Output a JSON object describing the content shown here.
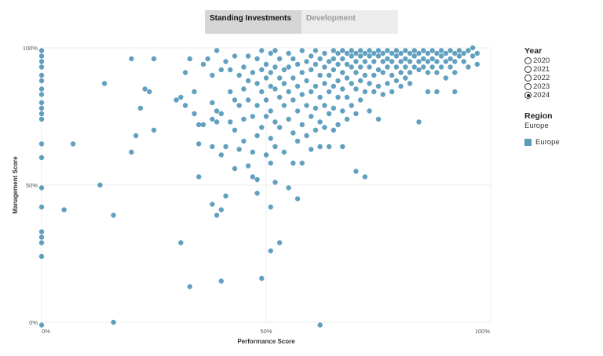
{
  "tabs": [
    {
      "label": "Standing Investments",
      "active": true
    },
    {
      "label": "Development",
      "active": false
    }
  ],
  "legend": {
    "year_title": "Year",
    "years": [
      "2020",
      "2021",
      "2022",
      "2023",
      "2024"
    ],
    "selected_year": "2024",
    "region_title": "Region",
    "region_value": "Europe",
    "color_entries": [
      {
        "label": "Europe",
        "color": "#5a9ab6"
      }
    ]
  },
  "colors": {
    "point": "#1f77a4",
    "grid": "#ececec"
  },
  "chart_data": {
    "type": "scatter",
    "xlabel": "Performance Score",
    "ylabel": "Management Score",
    "xlim": [
      0,
      100
    ],
    "ylim": [
      0,
      100
    ],
    "x_ticks": [
      "0%",
      "50%",
      "100%"
    ],
    "y_ticks": [
      "0%",
      "50%",
      "100%"
    ],
    "grid": true,
    "point_density": "dense cluster near x 65-95%, y 90-100%",
    "series": [
      {
        "points": [
          [
            0,
            99
          ],
          [
            0,
            97
          ],
          [
            0,
            95
          ],
          [
            0,
            93
          ],
          [
            0,
            90
          ],
          [
            0,
            88
          ],
          [
            0,
            85
          ],
          [
            0,
            83
          ],
          [
            0,
            80
          ],
          [
            0,
            78
          ],
          [
            0,
            76
          ],
          [
            0,
            74
          ],
          [
            0,
            65
          ],
          [
            0,
            60
          ],
          [
            0,
            49
          ],
          [
            0,
            42
          ],
          [
            0,
            33
          ],
          [
            0,
            31
          ],
          [
            0,
            29
          ],
          [
            0,
            24
          ],
          [
            0,
            -1
          ],
          [
            5,
            41
          ],
          [
            7,
            65
          ],
          [
            13,
            50
          ],
          [
            14,
            87
          ],
          [
            16,
            39
          ],
          [
            16,
            0
          ],
          [
            20,
            96
          ],
          [
            20,
            62
          ],
          [
            21,
            68
          ],
          [
            22,
            78
          ],
          [
            23,
            85
          ],
          [
            24,
            84
          ],
          [
            25,
            96
          ],
          [
            25,
            70
          ],
          [
            30,
            81
          ],
          [
            31,
            82
          ],
          [
            31,
            29
          ],
          [
            32,
            91
          ],
          [
            32,
            79
          ],
          [
            33,
            96
          ],
          [
            33,
            13
          ],
          [
            34,
            84
          ],
          [
            34,
            76
          ],
          [
            35,
            72
          ],
          [
            35,
            65
          ],
          [
            35,
            53
          ],
          [
            36,
            94
          ],
          [
            36,
            72
          ],
          [
            37,
            96
          ],
          [
            38,
            90
          ],
          [
            38,
            80
          ],
          [
            38,
            74
          ],
          [
            38,
            64
          ],
          [
            38,
            43
          ],
          [
            39,
            99
          ],
          [
            39,
            77
          ],
          [
            39,
            73
          ],
          [
            39,
            39
          ],
          [
            40,
            92
          ],
          [
            40,
            76
          ],
          [
            40,
            61
          ],
          [
            40,
            41
          ],
          [
            40,
            15
          ],
          [
            41,
            95
          ],
          [
            41,
            64
          ],
          [
            41,
            46
          ],
          [
            42,
            92
          ],
          [
            42,
            84
          ],
          [
            42,
            73
          ],
          [
            43,
            97
          ],
          [
            43,
            81
          ],
          [
            43,
            70
          ],
          [
            43,
            56
          ],
          [
            44,
            90
          ],
          [
            44,
            79
          ],
          [
            44,
            63
          ],
          [
            45,
            93
          ],
          [
            45,
            85
          ],
          [
            45,
            74
          ],
          [
            45,
            66
          ],
          [
            46,
            97
          ],
          [
            46,
            88
          ],
          [
            46,
            81
          ],
          [
            46,
            57
          ],
          [
            47,
            91
          ],
          [
            47,
            75
          ],
          [
            47,
            62
          ],
          [
            47,
            53
          ],
          [
            48,
            96
          ],
          [
            48,
            87
          ],
          [
            48,
            79
          ],
          [
            48,
            68
          ],
          [
            48,
            52
          ],
          [
            48,
            47
          ],
          [
            49,
            99
          ],
          [
            49,
            92
          ],
          [
            49,
            84
          ],
          [
            49,
            71
          ],
          [
            49,
            16
          ],
          [
            50,
            94
          ],
          [
            50,
            89
          ],
          [
            50,
            81
          ],
          [
            50,
            75
          ],
          [
            50,
            61
          ],
          [
            51,
            98
          ],
          [
            51,
            91
          ],
          [
            51,
            86
          ],
          [
            51,
            77
          ],
          [
            51,
            67
          ],
          [
            51,
            58
          ],
          [
            51,
            42
          ],
          [
            51,
            26
          ],
          [
            52,
            99
          ],
          [
            52,
            93
          ],
          [
            52,
            85
          ],
          [
            52,
            73
          ],
          [
            52,
            64
          ],
          [
            52,
            51
          ],
          [
            53,
            96
          ],
          [
            53,
            89
          ],
          [
            53,
            82
          ],
          [
            53,
            71
          ],
          [
            53,
            29
          ],
          [
            54,
            92
          ],
          [
            54,
            87
          ],
          [
            54,
            79
          ],
          [
            54,
            62
          ],
          [
            55,
            98
          ],
          [
            55,
            93
          ],
          [
            55,
            84
          ],
          [
            55,
            74
          ],
          [
            55,
            49
          ],
          [
            56,
            96
          ],
          [
            56,
            89
          ],
          [
            56,
            81
          ],
          [
            56,
            69
          ],
          [
            56,
            58
          ],
          [
            57,
            94
          ],
          [
            57,
            86
          ],
          [
            57,
            77
          ],
          [
            57,
            66
          ],
          [
            57,
            45
          ],
          [
            58,
            99
          ],
          [
            58,
            91
          ],
          [
            58,
            83
          ],
          [
            58,
            72
          ],
          [
            58,
            58
          ],
          [
            59,
            95
          ],
          [
            59,
            88
          ],
          [
            59,
            79
          ],
          [
            59,
            68
          ],
          [
            60,
            97
          ],
          [
            60,
            92
          ],
          [
            60,
            84
          ],
          [
            60,
            75
          ],
          [
            60,
            63
          ],
          [
            61,
            99
          ],
          [
            61,
            94
          ],
          [
            61,
            86
          ],
          [
            61,
            78
          ],
          [
            61,
            70
          ],
          [
            62,
            96
          ],
          [
            62,
            90
          ],
          [
            62,
            82
          ],
          [
            62,
            73
          ],
          [
            62,
            64
          ],
          [
            62,
            -1
          ],
          [
            63,
            98
          ],
          [
            63,
            93
          ],
          [
            63,
            87
          ],
          [
            63,
            79
          ],
          [
            63,
            71
          ],
          [
            64,
            95
          ],
          [
            64,
            90
          ],
          [
            64,
            84
          ],
          [
            64,
            76
          ],
          [
            64,
            64
          ],
          [
            65,
            99
          ],
          [
            65,
            96
          ],
          [
            65,
            92
          ],
          [
            65,
            86
          ],
          [
            65,
            78
          ],
          [
            65,
            70
          ],
          [
            66,
            98
          ],
          [
            66,
            94
          ],
          [
            66,
            88
          ],
          [
            66,
            82
          ],
          [
            66,
            72
          ],
          [
            67,
            99
          ],
          [
            67,
            96
          ],
          [
            67,
            91
          ],
          [
            67,
            85
          ],
          [
            67,
            77
          ],
          [
            67,
            64
          ],
          [
            68,
            98
          ],
          [
            68,
            94
          ],
          [
            68,
            89
          ],
          [
            68,
            82
          ],
          [
            68,
            74
          ],
          [
            69,
            99
          ],
          [
            69,
            97
          ],
          [
            69,
            93
          ],
          [
            69,
            87
          ],
          [
            69,
            79
          ],
          [
            70,
            98
          ],
          [
            70,
            95
          ],
          [
            70,
            91
          ],
          [
            70,
            85
          ],
          [
            70,
            76
          ],
          [
            70,
            55
          ],
          [
            71,
            99
          ],
          [
            71,
            97
          ],
          [
            71,
            93
          ],
          [
            71,
            88
          ],
          [
            71,
            81
          ],
          [
            72,
            98
          ],
          [
            72,
            95
          ],
          [
            72,
            90
          ],
          [
            72,
            84
          ],
          [
            72,
            53
          ],
          [
            73,
            99
          ],
          [
            73,
            97
          ],
          [
            73,
            93
          ],
          [
            73,
            87
          ],
          [
            73,
            77
          ],
          [
            74,
            98
          ],
          [
            74,
            95
          ],
          [
            74,
            90
          ],
          [
            74,
            84
          ],
          [
            75,
            99
          ],
          [
            75,
            97
          ],
          [
            75,
            92
          ],
          [
            75,
            86
          ],
          [
            75,
            74
          ],
          [
            76,
            98
          ],
          [
            76,
            95
          ],
          [
            76,
            91
          ],
          [
            76,
            83
          ],
          [
            77,
            99
          ],
          [
            77,
            96
          ],
          [
            77,
            93
          ],
          [
            77,
            87
          ],
          [
            78,
            98
          ],
          [
            78,
            95
          ],
          [
            78,
            90
          ],
          [
            78,
            84
          ],
          [
            79,
            99
          ],
          [
            79,
            97
          ],
          [
            79,
            93
          ],
          [
            79,
            88
          ],
          [
            80,
            98
          ],
          [
            80,
            95
          ],
          [
            80,
            91
          ],
          [
            80,
            86
          ],
          [
            81,
            99
          ],
          [
            81,
            96
          ],
          [
            81,
            93
          ],
          [
            81,
            89
          ],
          [
            82,
            98
          ],
          [
            82,
            95
          ],
          [
            82,
            91
          ],
          [
            82,
            87
          ],
          [
            83,
            99
          ],
          [
            83,
            97
          ],
          [
            83,
            93
          ],
          [
            84,
            98
          ],
          [
            84,
            95
          ],
          [
            84,
            92
          ],
          [
            84,
            73
          ],
          [
            85,
            99
          ],
          [
            85,
            96
          ],
          [
            85,
            93
          ],
          [
            86,
            98
          ],
          [
            86,
            95
          ],
          [
            86,
            91
          ],
          [
            86,
            84
          ],
          [
            87,
            99
          ],
          [
            87,
            96
          ],
          [
            87,
            93
          ],
          [
            88,
            98
          ],
          [
            88,
            95
          ],
          [
            88,
            91
          ],
          [
            88,
            84
          ],
          [
            89,
            99
          ],
          [
            89,
            97
          ],
          [
            89,
            93
          ],
          [
            90,
            98
          ],
          [
            90,
            95
          ],
          [
            90,
            89
          ],
          [
            91,
            99
          ],
          [
            91,
            96
          ],
          [
            91,
            93
          ],
          [
            92,
            98
          ],
          [
            92,
            95
          ],
          [
            92,
            91
          ],
          [
            92,
            84
          ],
          [
            93,
            99
          ],
          [
            93,
            97
          ],
          [
            94,
            98
          ],
          [
            94,
            95
          ],
          [
            95,
            99
          ],
          [
            95,
            93
          ],
          [
            96,
            100
          ],
          [
            96,
            97
          ],
          [
            97,
            98
          ],
          [
            97,
            94
          ]
        ]
      }
    ]
  }
}
